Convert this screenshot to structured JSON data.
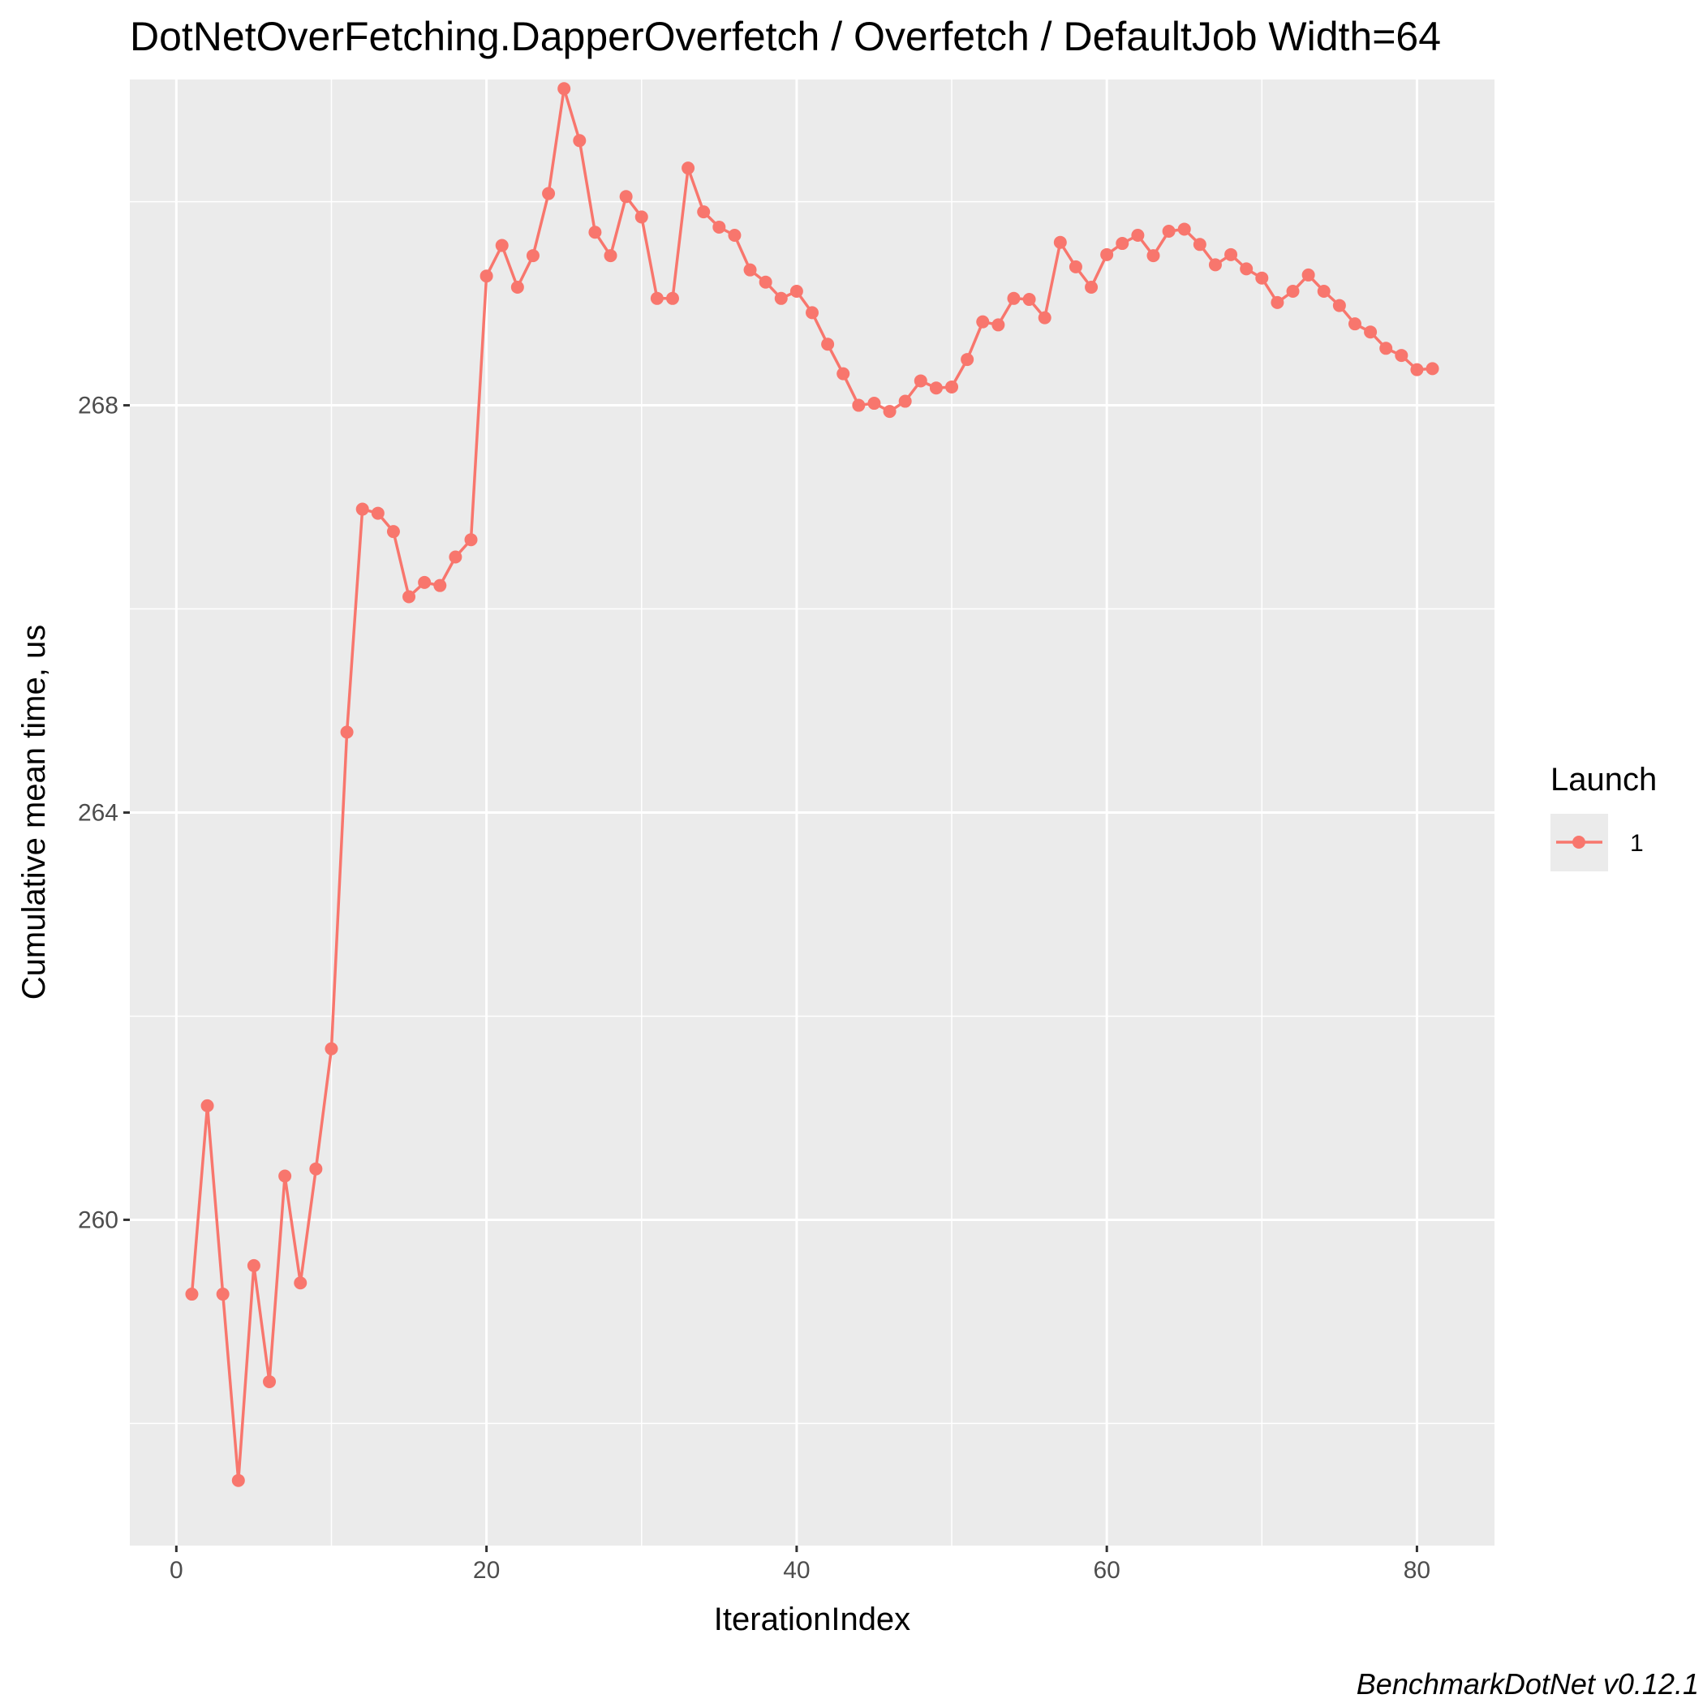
{
  "chart_data": {
    "type": "line",
    "title": "DotNetOverFetching.DapperOverfetch / Overfetch / DefaultJob Width=64",
    "xlabel": "IterationIndex",
    "ylabel": "Cumulative mean time, us",
    "caption": "BenchmarkDotNet v0.12.1",
    "xlim": [
      -3,
      85
    ],
    "ylim": [
      256.8,
      271.2
    ],
    "x_ticks": [
      0,
      20,
      40,
      60,
      80
    ],
    "x_tick_labels": [
      "0",
      "20",
      "40",
      "60",
      "80"
    ],
    "y_ticks": [
      260,
      264,
      268
    ],
    "y_tick_labels": [
      "260",
      "264",
      "268"
    ],
    "y_minor_grid": [
      258,
      262,
      266,
      270
    ],
    "x_minor_grid": [
      10,
      30,
      50,
      70
    ],
    "grid": true,
    "background": "#ebebeb",
    "legend": {
      "title": "Launch",
      "position": "right"
    },
    "series": [
      {
        "name": "1",
        "color": "#f8766d",
        "x": [
          1,
          2,
          3,
          4,
          5,
          6,
          7,
          8,
          9,
          10,
          11,
          12,
          13,
          14,
          15,
          16,
          17,
          18,
          19,
          20,
          21,
          22,
          23,
          24,
          25,
          26,
          27,
          28,
          29,
          30,
          31,
          32,
          33,
          34,
          35,
          36,
          37,
          38,
          39,
          40,
          41,
          42,
          43,
          44,
          45,
          46,
          47,
          48,
          49,
          50,
          51,
          52,
          53,
          54,
          55,
          56,
          57,
          58,
          59,
          60,
          61,
          62,
          63,
          64,
          65,
          66,
          67,
          68,
          69,
          70,
          71,
          72,
          73,
          74,
          75,
          76,
          77,
          78,
          79,
          80,
          81
        ],
        "values": [
          259.27,
          261.12,
          259.27,
          257.44,
          259.55,
          258.41,
          260.43,
          259.38,
          260.5,
          261.68,
          264.79,
          266.98,
          266.94,
          266.76,
          266.12,
          266.26,
          266.23,
          266.51,
          266.68,
          269.27,
          269.57,
          269.16,
          269.47,
          270.08,
          271.11,
          270.6,
          269.7,
          269.47,
          270.05,
          269.85,
          269.05,
          269.05,
          270.33,
          269.9,
          269.75,
          269.67,
          269.33,
          269.21,
          269.05,
          269.12,
          268.91,
          268.6,
          268.31,
          268.0,
          268.02,
          267.94,
          268.04,
          268.24,
          268.17,
          268.18,
          268.45,
          268.82,
          268.79,
          269.05,
          269.04,
          268.86,
          269.6,
          269.36,
          269.16,
          269.48,
          269.59,
          269.67,
          269.47,
          269.71,
          269.73,
          269.58,
          269.38,
          269.48,
          269.34,
          269.25,
          269.01,
          269.12,
          269.28,
          269.12,
          268.98,
          268.8,
          268.72,
          268.56,
          268.49,
          268.35,
          268.36
        ]
      }
    ]
  }
}
